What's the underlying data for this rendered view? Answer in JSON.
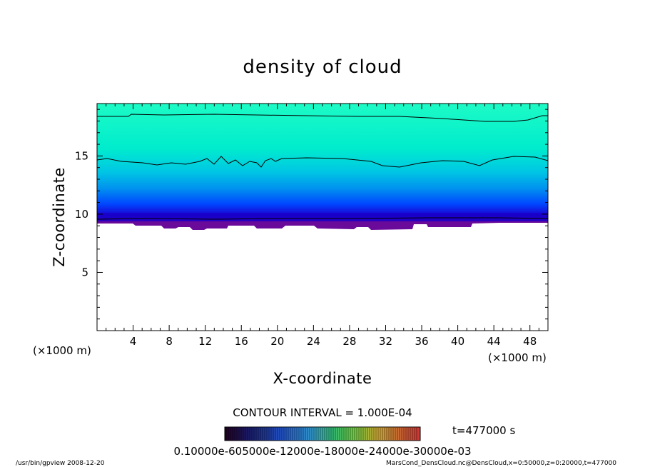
{
  "figure": {
    "title": "density of cloud",
    "x_label": "X-coordinate",
    "y_label": "Z-coordinate",
    "x_unit": "(×1000 m)",
    "x_unit_right": "(×1000 m)",
    "contour_interval": "CONTOUR INTERVAL = 1.000E-04",
    "time_label": "t=477000  s",
    "colorbar_labels": "0.10000e-605000e-12000e-18000e-24000e-30000e-03",
    "footer_left": "/usr/bin/gpview   2008-12-20",
    "footer_right": "MarsCond_DensCloud.nc@DensCloud,x=0:50000,z=0:20000,t=477000"
  },
  "chart_data": {
    "type": "heatmap",
    "title": "density of cloud",
    "xlabel": "X-coordinate",
    "ylabel": "Z-coordinate",
    "x_ticks": [
      4,
      8,
      12,
      16,
      20,
      24,
      28,
      32,
      36,
      40,
      44,
      48
    ],
    "y_ticks": [
      5,
      10,
      15
    ],
    "xlim": [
      0,
      50
    ],
    "ylim": [
      0,
      19.5
    ],
    "cloud_base_z": 9.5,
    "contour_lines_z": [
      19,
      15,
      10
    ],
    "color_levels": [
      "#6a0a9a",
      "#1a00d0",
      "#0048ff",
      "#0092ee",
      "#00c6e4",
      "#00eccd",
      "#1dfbc6"
    ],
    "colorbar_colors": [
      "#000000",
      "#1a1a66",
      "#2255cc",
      "#3399cc",
      "#33bb88",
      "#55cc44",
      "#aacc33",
      "#ccaa33",
      "#cc6633",
      "#cc3333"
    ]
  }
}
